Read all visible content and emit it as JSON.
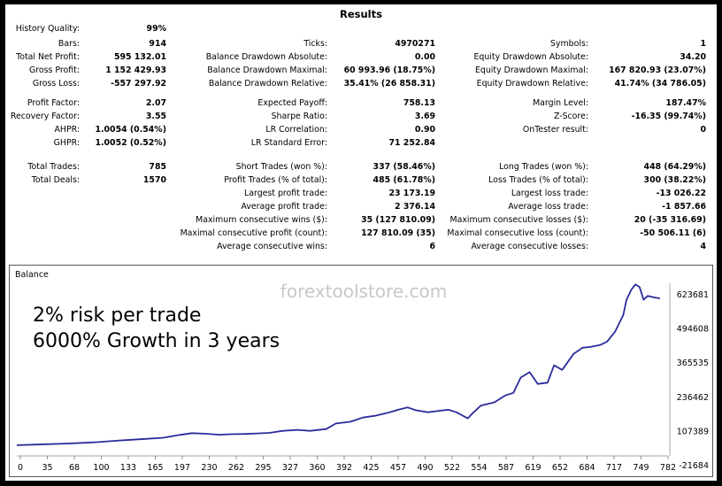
{
  "results": {
    "title": "Results",
    "rows": [
      [
        [
          "History Quality:",
          "99%"
        ],
        [
          "",
          ""
        ],
        [
          "",
          ""
        ]
      ],
      [
        [
          "Bars:",
          "914"
        ],
        [
          "Ticks:",
          "4970271"
        ],
        [
          "Symbols:",
          "1"
        ]
      ],
      [
        [
          "Total Net Profit:",
          "595 132.01"
        ],
        [
          "Balance Drawdown Absolute:",
          "0.00"
        ],
        [
          "Equity Drawdown Absolute:",
          "34.20"
        ]
      ],
      [
        [
          "Gross Profit:",
          "1 152 429.93"
        ],
        [
          "Balance Drawdown Maximal:",
          "60 993.96 (18.75%)"
        ],
        [
          "Equity Drawdown Maximal:",
          "167 820.93 (23.07%)"
        ]
      ],
      [
        [
          "Gross Loss:",
          "-557 297.92"
        ],
        [
          "Balance Drawdown Relative:",
          "35.41% (26 858.31)"
        ],
        [
          "Equity Drawdown Relative:",
          "41.74% (34 786.05)"
        ]
      ],
      [
        [
          "",
          ""
        ],
        [
          "",
          ""
        ],
        [
          "",
          ""
        ]
      ],
      [
        [
          "Profit Factor:",
          "2.07"
        ],
        [
          "Expected Payoff:",
          "758.13"
        ],
        [
          "Margin Level:",
          "187.47%"
        ]
      ],
      [
        [
          "Recovery Factor:",
          "3.55"
        ],
        [
          "Sharpe Ratio:",
          "3.69"
        ],
        [
          "Z-Score:",
          "-16.35 (99.74%)"
        ]
      ],
      [
        [
          "AHPR:",
          "1.0054 (0.54%)"
        ],
        [
          "LR Correlation:",
          "0.90"
        ],
        [
          "OnTester result:",
          "0"
        ]
      ],
      [
        [
          "GHPR:",
          "1.0052 (0.52%)"
        ],
        [
          "LR Standard Error:",
          "71 252.84"
        ],
        [
          "",
          ""
        ]
      ],
      [
        [
          "",
          ""
        ],
        [
          "",
          ""
        ],
        [
          "",
          ""
        ]
      ],
      [
        [
          "Total Trades:",
          "785"
        ],
        [
          "Short Trades (won %):",
          "337 (58.46%)"
        ],
        [
          "Long Trades (won %):",
          "448 (64.29%)"
        ]
      ],
      [
        [
          "Total Deals:",
          "1570"
        ],
        [
          "Profit Trades (% of total):",
          "485 (61.78%)"
        ],
        [
          "Loss Trades (% of total):",
          "300 (38.22%)"
        ]
      ],
      [
        [
          "",
          ""
        ],
        [
          "Largest profit trade:",
          "23 173.19"
        ],
        [
          "Largest loss trade:",
          "-13 026.22"
        ]
      ],
      [
        [
          "",
          ""
        ],
        [
          "Average profit trade:",
          "2 376.14"
        ],
        [
          "Average loss trade:",
          "-1 857.66"
        ]
      ],
      [
        [
          "",
          ""
        ],
        [
          "Maximum consecutive wins ($):",
          "35 (127 810.09)"
        ],
        [
          "Maximum consecutive losses ($):",
          "20 (-35 316.69)"
        ]
      ],
      [
        [
          "",
          ""
        ],
        [
          "Maximal consecutive profit (count):",
          "127 810.09 (35)"
        ],
        [
          "Maximal consecutive loss (count):",
          "-50 506.11 (6)"
        ]
      ],
      [
        [
          "",
          ""
        ],
        [
          "Average consecutive wins:",
          "6"
        ],
        [
          "Average consecutive losses:",
          "4"
        ]
      ]
    ]
  },
  "chart_data": {
    "type": "line",
    "title": "Balance",
    "watermark": "forextoolstore.com",
    "annotations": [
      "2% risk per trade",
      "6000% Growth in 3 years"
    ],
    "x_ticks": [
      "0",
      "35",
      "68",
      "100",
      "133",
      "165",
      "197",
      "230",
      "262",
      "295",
      "327",
      "360",
      "392",
      "425",
      "457",
      "490",
      "522",
      "554",
      "587",
      "619",
      "652",
      "684",
      "717",
      "749",
      "782"
    ],
    "y_ticks": [
      "-21684",
      "107389",
      "236462",
      "365535",
      "494608",
      "623681"
    ],
    "xlim": [
      0,
      800
    ],
    "ylim": [
      -21684,
      623681
    ],
    "grid": false,
    "line_color": "#2b2b9b",
    "series": [
      {
        "x": [
          0,
          20,
          40,
          60,
          80,
          100,
          120,
          140,
          160,
          180,
          200,
          215,
          230,
          250,
          262,
          280,
          295,
          310,
          327,
          345,
          360,
          380,
          392,
          410,
          425,
          440,
          457,
          470,
          480,
          490,
          505,
          515,
          530,
          540,
          554,
          560,
          570,
          587,
          600,
          610,
          619,
          630,
          640,
          652,
          660,
          670,
          684,
          695,
          705,
          717,
          725,
          735,
          745,
          749,
          755,
          760,
          765,
          770,
          775,
          782,
          790
        ],
        "y": [
          10000,
          12000,
          14000,
          16000,
          19000,
          22000,
          27000,
          31000,
          35000,
          39000,
          50000,
          57000,
          55000,
          51000,
          53000,
          54000,
          56000,
          58000,
          66000,
          70000,
          66000,
          73000,
          95000,
          102000,
          118000,
          125000,
          138000,
          150000,
          158000,
          147000,
          139000,
          143000,
          149000,
          139000,
          115000,
          135000,
          165000,
          178000,
          205000,
          215000,
          275000,
          296000,
          250000,
          255000,
          323000,
          305000,
          368000,
          392000,
          395000,
          403000,
          415000,
          455000,
          520000,
          580000,
          620000,
          640000,
          630000,
          580000,
          595000,
          590000,
          585000
        ]
      }
    ]
  }
}
